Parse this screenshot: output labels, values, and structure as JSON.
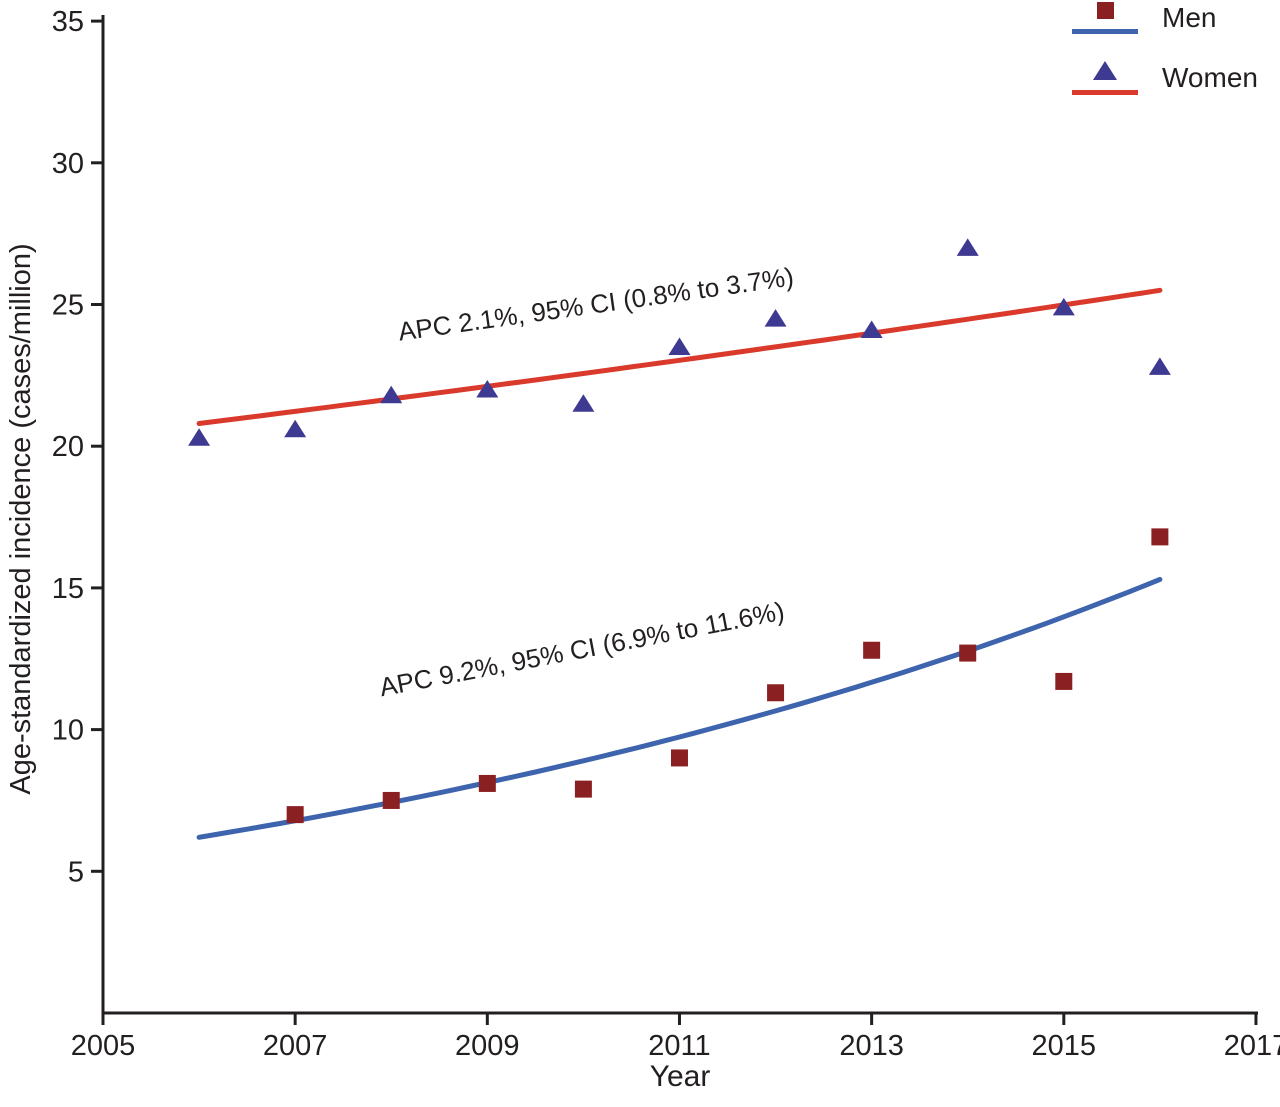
{
  "chart_data": {
    "type": "scatter",
    "title": "",
    "xlabel": "Year",
    "ylabel": "Age-standardized incidence (cases/million)",
    "xlim": [
      2005,
      2017
    ],
    "ylim": [
      0,
      35
    ],
    "x_ticks": [
      2005,
      2007,
      2009,
      2011,
      2013,
      2015,
      2017
    ],
    "y_ticks": [
      5,
      10,
      15,
      20,
      25,
      30,
      35
    ],
    "grid": false,
    "legend_position": "top-right",
    "axis_color": "#231f20",
    "series": [
      {
        "name": "Men",
        "marker": "square",
        "marker_color": "#8b2022",
        "trend_color": "#3d64ad",
        "x": [
          2007,
          2008,
          2009,
          2010,
          2011,
          2012,
          2013,
          2014,
          2015,
          2016
        ],
        "values": [
          7.0,
          7.5,
          8.1,
          7.9,
          9.0,
          11.3,
          12.8,
          12.7,
          11.7,
          16.8
        ],
        "trend": {
          "type": "exponential",
          "x_start": 2006,
          "x_end": 2016,
          "y_start": 6.2,
          "y_end": 15.3
        },
        "annotation": "APC 9.2%, 95% CI (6.9% to 11.6%)"
      },
      {
        "name": "Women",
        "marker": "triangle",
        "marker_color": "#3e3a92",
        "trend_color": "#d93a2b",
        "x": [
          2006,
          2007,
          2008,
          2009,
          2010,
          2011,
          2012,
          2013,
          2014,
          2015,
          2016
        ],
        "values": [
          20.3,
          20.6,
          21.8,
          22.0,
          21.5,
          23.5,
          24.5,
          24.1,
          27.0,
          24.9,
          22.8
        ],
        "trend": {
          "type": "exponential",
          "x_start": 2006,
          "x_end": 2016,
          "y_start": 20.8,
          "y_end": 25.5
        },
        "annotation": "APC 2.1%, 95% CI (0.8% to 3.7%)"
      }
    ]
  }
}
